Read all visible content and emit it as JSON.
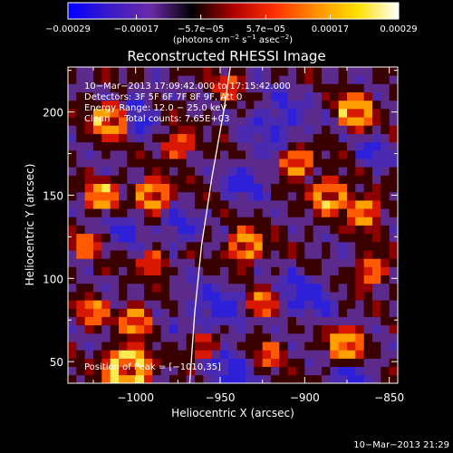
{
  "chart_data": {
    "type": "heatmap",
    "title": "Reconstructed RHESSI Image",
    "xlabel": "Heliocentric X (arcsec)",
    "ylabel": "Heliocentric Y (arcsec)",
    "xlim": [
      -1040,
      -845
    ],
    "ylim": [
      37,
      227
    ],
    "x_ticks": [
      -1000,
      -950,
      -900,
      -850
    ],
    "y_ticks": [
      50,
      100,
      150,
      200
    ],
    "x_tick_labels": [
      "−1000",
      "−950",
      "−900",
      "−850"
    ],
    "y_tick_labels": [
      "50",
      "100",
      "150",
      "200"
    ],
    "colorbar": {
      "range": [
        -0.00029,
        0.00029
      ],
      "ticks": [
        -0.00029,
        -0.00017,
        -5.7e-05,
        5.7e-05,
        0.00017,
        0.00029
      ],
      "tick_labels": [
        "−0.00029",
        "−0.00017",
        "−5.7e−05",
        "5.7e−05",
        "0.00017",
        "0.00029"
      ],
      "units_prefix": "(photons cm",
      "units_exp1": "−2",
      "units_mid": " s",
      "units_exp2": "−1",
      "units_mid2": " asec",
      "units_exp3": "−2",
      "units_suffix": ")",
      "colors": [
        "#0000ff",
        "#3a1ac8",
        "#6a2aa8",
        "#000000",
        "#b00000",
        "#ff3000",
        "#ff9000",
        "#ffe000",
        "#ffffff"
      ]
    },
    "annotations": [
      "10−Mar−2013 17:09:42.000 to 17:15:42.000",
      "Detectors: 3F 5F 6F 7F 8F 9F, Att 0",
      "Energy Range: 12.0 − 25.0 keV",
      "Clean     Total counts: 7.65E+03"
    ],
    "peak_label": "Position of Peak = [−1010,35]",
    "limb": [
      [
        -968,
        37
      ],
      [
        -965,
        80
      ],
      [
        -961,
        120
      ],
      [
        -955,
        160
      ],
      [
        -948,
        200
      ],
      [
        -944,
        227
      ]
    ]
  },
  "footer": {
    "timestamp": "10−Mar−2013 21:29"
  }
}
